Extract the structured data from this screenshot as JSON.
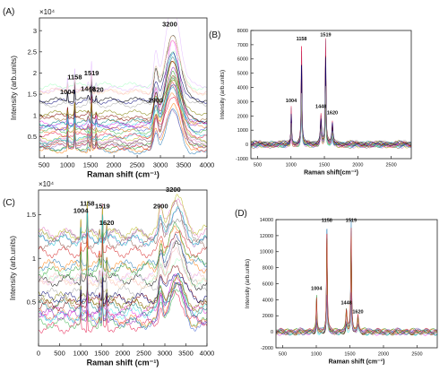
{
  "chart_data": [
    {
      "type": "line",
      "panel_label": "(A)",
      "xlabel": "Raman shift (cm⁻¹)",
      "ylabel": "Intensity (arb.units)",
      "exponent_label": "×10⁴",
      "xlim": [
        400,
        4000
      ],
      "ylim": [
        0,
        3.3
      ],
      "x_ticks": [
        500,
        1000,
        1500,
        2000,
        2500,
        3000,
        3500,
        4000
      ],
      "y_ticks": [
        0.5,
        1,
        1.5,
        2,
        2.5,
        3
      ],
      "y_tick_labels": [
        "0.5",
        "1",
        "1.5",
        "2",
        "2.5",
        "3"
      ],
      "annotations": [
        {
          "text": "1004",
          "x": 1004,
          "y": 1.5
        },
        {
          "text": "1158",
          "x": 1158,
          "y": 1.85
        },
        {
          "text": "1448",
          "x": 1448,
          "y": 1.58
        },
        {
          "text": "1519",
          "x": 1519,
          "y": 1.95
        },
        {
          "text": "1620",
          "x": 1620,
          "y": 1.55
        },
        {
          "text": "2900",
          "x": 2900,
          "y": 1.3
        },
        {
          "text": "3200",
          "x": 3200,
          "y": 3.1
        }
      ],
      "peaks": [
        {
          "x": 1004,
          "h": 0.22,
          "w": 9
        },
        {
          "x": 1158,
          "h": 0.38,
          "w": 9
        },
        {
          "x": 1448,
          "h": 0.1,
          "w": 14
        },
        {
          "x": 1519,
          "h": 0.45,
          "w": 9
        },
        {
          "x": 1620,
          "h": 0.12,
          "w": 12
        },
        {
          "x": 2900,
          "h": 0.55,
          "w": 45
        },
        {
          "x": 3270,
          "h": 1.35,
          "w": 150
        }
      ],
      "baseline_range": [
        0.18,
        1.6
      ],
      "series_count": 28
    },
    {
      "type": "line",
      "panel_label": "(B)",
      "xlabel": "Raman shift(cm⁻¹)",
      "ylabel": "Intensity (arb.units)",
      "exponent_label": "",
      "xlim": [
        400,
        2800
      ],
      "ylim": [
        -1000,
        8000
      ],
      "x_ticks": [
        500,
        1000,
        1500,
        2000,
        2500
      ],
      "y_ticks": [
        -1000,
        0,
        1000,
        2000,
        3000,
        4000,
        5000,
        6000,
        7000,
        8000
      ],
      "y_tick_labels": [
        "-1000",
        "0",
        "1000",
        "2000",
        "3000",
        "4000",
        "5000",
        "6000",
        "7000",
        "8000"
      ],
      "annotations": [
        {
          "text": "1004",
          "x": 1004,
          "y": 2950
        },
        {
          "text": "1158",
          "x": 1158,
          "y": 7300
        },
        {
          "text": "1448",
          "x": 1448,
          "y": 2550
        },
        {
          "text": "1519",
          "x": 1519,
          "y": 7600
        },
        {
          "text": "1620",
          "x": 1620,
          "y": 2100
        }
      ],
      "peaks": [
        {
          "x": 1004,
          "h": 2500,
          "w": 7
        },
        {
          "x": 1158,
          "h": 6900,
          "w": 7
        },
        {
          "x": 1448,
          "h": 2000,
          "w": 11
        },
        {
          "x": 1519,
          "h": 7200,
          "w": 7
        },
        {
          "x": 1620,
          "h": 1500,
          "w": 10
        }
      ],
      "baseline_range": [
        -100,
        120
      ],
      "series_count": 18
    },
    {
      "type": "line",
      "panel_label": "(C)",
      "xlabel": "Raman shift (cm⁻¹)",
      "ylabel": "Intensity (arb.units)",
      "exponent_label": "×10⁴",
      "xlim": [
        0,
        4000
      ],
      "ylim": [
        0,
        1.78
      ],
      "x_ticks": [
        0,
        500,
        1000,
        1500,
        2000,
        2500,
        3000,
        3500,
        4000
      ],
      "y_ticks": [
        0.5,
        1,
        1.5
      ],
      "y_tick_labels": [
        "0.5",
        "1",
        "1.5"
      ],
      "annotations": [
        {
          "text": "1004",
          "x": 1004,
          "y": 1.52
        },
        {
          "text": "1158",
          "x": 1158,
          "y": 1.6
        },
        {
          "text": "1519",
          "x": 1519,
          "y": 1.57
        },
        {
          "text": "1620",
          "x": 1620,
          "y": 1.38
        },
        {
          "text": "2900",
          "x": 2900,
          "y": 1.57
        },
        {
          "text": "3200",
          "x": 3200,
          "y": 1.76
        }
      ],
      "peaks": [
        {
          "x": 1004,
          "h": 0.17,
          "w": 9
        },
        {
          "x": 1158,
          "h": 0.28,
          "w": 9
        },
        {
          "x": 1448,
          "h": 0.08,
          "w": 14
        },
        {
          "x": 1519,
          "h": 0.32,
          "w": 9
        },
        {
          "x": 1620,
          "h": 0.1,
          "w": 12
        },
        {
          "x": 2900,
          "h": 0.2,
          "w": 45
        },
        {
          "x": 3270,
          "h": 0.35,
          "w": 160
        }
      ],
      "baseline_range": [
        0.25,
        1.35
      ],
      "series_count": 28
    },
    {
      "type": "line",
      "panel_label": "(D)",
      "xlabel": "Raman shift (cm⁻¹)",
      "ylabel": "Intensity (arb.units)",
      "exponent_label": "",
      "xlim": [
        400,
        2800
      ],
      "ylim": [
        -2000,
        14000
      ],
      "x_ticks": [
        500,
        1000,
        1500,
        2000,
        2500
      ],
      "y_ticks": [
        -2000,
        0,
        2000,
        4000,
        6000,
        8000,
        10000,
        12000,
        14000
      ],
      "y_tick_labels": [
        "-2000",
        "0",
        "2000",
        "4000",
        "6000",
        "8000",
        "10000",
        "12000",
        "14000"
      ],
      "annotations": [
        {
          "text": "1004",
          "x": 1004,
          "y": 5200
        },
        {
          "text": "1158",
          "x": 1158,
          "y": 13700
        },
        {
          "text": "1448",
          "x": 1448,
          "y": 3400
        },
        {
          "text": "1519",
          "x": 1519,
          "y": 13700
        },
        {
          "text": "1620",
          "x": 1620,
          "y": 2300
        }
      ],
      "peaks": [
        {
          "x": 1004,
          "h": 4300,
          "w": 7
        },
        {
          "x": 1158,
          "h": 12800,
          "w": 7
        },
        {
          "x": 1448,
          "h": 2600,
          "w": 11
        },
        {
          "x": 1519,
          "h": 12800,
          "w": 7
        },
        {
          "x": 1620,
          "h": 1800,
          "w": 10
        }
      ],
      "baseline_range": [
        -150,
        150
      ],
      "series_count": 18
    }
  ]
}
